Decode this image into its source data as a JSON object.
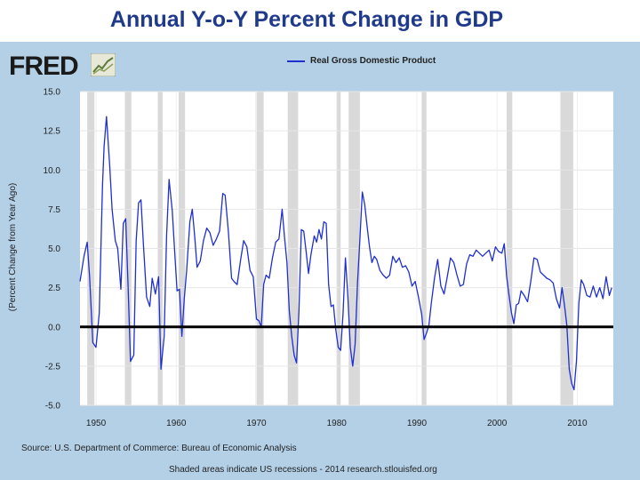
{
  "slide": {
    "title": "Annual Y-o-Y Percent Change in GDP"
  },
  "fred": {
    "logo_text": "FRED",
    "source": "Source: U.S. Department of Commerce: Bureau of Economic Analysis",
    "footnote": "Shaded areas indicate US recessions - 2014 research.stlouisfed.org"
  },
  "chart_data": {
    "type": "line",
    "title": "",
    "xlabel": "",
    "ylabel": "(Percent Change from Year Ago)",
    "xlim": [
      1948,
      2014.5
    ],
    "ylim": [
      -5,
      15
    ],
    "x_ticks": [
      "1950",
      "1960",
      "1970",
      "1980",
      "1990",
      "2000",
      "2010"
    ],
    "y_ticks": [
      "15.0",
      "12.5",
      "10.0",
      "7.5",
      "5.0",
      "2.5",
      "0.0",
      "-2.5",
      "-5.0"
    ],
    "grid": true,
    "legend_position": "top-center",
    "zero_line": true,
    "colors": {
      "series": "#1f2fd0",
      "recession": "#d9d9d9",
      "panel": "#b4d0e6",
      "title": "#1f3a8a"
    },
    "recessions": [
      [
        1948.9,
        1949.8
      ],
      [
        1953.6,
        1954.4
      ],
      [
        1957.7,
        1958.3
      ],
      [
        1960.3,
        1961.1
      ],
      [
        1969.9,
        1970.9
      ],
      [
        1973.9,
        1975.2
      ],
      [
        1980.0,
        1980.5
      ],
      [
        1981.5,
        1982.9
      ],
      [
        1990.6,
        1991.2
      ],
      [
        2001.2,
        2001.9
      ],
      [
        2007.9,
        2009.5
      ]
    ],
    "series": [
      {
        "name": "Real Gross Domestic Product",
        "x": [
          1948.0,
          1948.5,
          1948.9,
          1949.2,
          1949.6,
          1950.0,
          1950.4,
          1950.8,
          1951.0,
          1951.3,
          1951.7,
          1952.0,
          1952.4,
          1952.7,
          1953.1,
          1953.4,
          1953.7,
          1954.0,
          1954.3,
          1954.7,
          1955.0,
          1955.3,
          1955.6,
          1955.9,
          1956.3,
          1956.7,
          1957.0,
          1957.4,
          1957.8,
          1958.1,
          1958.5,
          1958.8,
          1959.1,
          1959.5,
          1959.8,
          1960.1,
          1960.4,
          1960.7,
          1961.0,
          1961.3,
          1961.7,
          1962.0,
          1962.3,
          1962.6,
          1963.0,
          1963.4,
          1963.8,
          1964.2,
          1964.6,
          1965.0,
          1965.4,
          1965.8,
          1966.1,
          1966.5,
          1966.9,
          1967.2,
          1967.6,
          1968.0,
          1968.4,
          1968.8,
          1969.2,
          1969.6,
          1970.0,
          1970.3,
          1970.6,
          1970.9,
          1971.2,
          1971.6,
          1972.0,
          1972.4,
          1972.8,
          1973.2,
          1973.5,
          1973.8,
          1974.1,
          1974.4,
          1974.7,
          1975.0,
          1975.3,
          1975.6,
          1975.9,
          1976.2,
          1976.5,
          1976.8,
          1977.2,
          1977.5,
          1977.8,
          1978.1,
          1978.4,
          1978.7,
          1979.0,
          1979.3,
          1979.6,
          1979.9,
          1980.2,
          1980.5,
          1980.8,
          1981.1,
          1981.4,
          1981.7,
          1982.0,
          1982.3,
          1982.6,
          1982.9,
          1983.2,
          1983.5,
          1983.8,
          1984.1,
          1984.4,
          1984.7,
          1985.0,
          1985.4,
          1985.8,
          1986.2,
          1986.6,
          1987.0,
          1987.4,
          1987.8,
          1988.2,
          1988.6,
          1989.0,
          1989.4,
          1989.8,
          1990.2,
          1990.6,
          1990.9,
          1991.2,
          1991.5,
          1991.8,
          1992.2,
          1992.6,
          1993.0,
          1993.4,
          1993.8,
          1994.2,
          1994.6,
          1995.0,
          1995.4,
          1995.8,
          1996.2,
          1996.6,
          1997.0,
          1997.4,
          1997.8,
          1998.2,
          1998.6,
          1999.0,
          1999.4,
          1999.8,
          2000.2,
          2000.6,
          2000.9,
          2001.2,
          2001.5,
          2001.8,
          2002.1,
          2002.4,
          2002.7,
          2003.0,
          2003.4,
          2003.8,
          2004.2,
          2004.6,
          2005.0,
          2005.4,
          2005.8,
          2006.2,
          2006.6,
          2007.0,
          2007.4,
          2007.8,
          2008.1,
          2008.4,
          2008.7,
          2009.0,
          2009.3,
          2009.6,
          2009.9,
          2010.2,
          2010.5,
          2010.8,
          2011.2,
          2011.6,
          2012.0,
          2012.4,
          2012.8,
          2013.2,
          2013.6,
          2014.0,
          2014.3
        ],
        "values": [
          2.9,
          4.5,
          5.4,
          3.2,
          -1.0,
          -1.3,
          0.9,
          9.0,
          11.5,
          13.4,
          10.3,
          7.5,
          5.5,
          5.0,
          2.4,
          6.6,
          6.9,
          2.6,
          -2.2,
          -1.8,
          5.5,
          7.9,
          8.1,
          5.3,
          1.9,
          1.3,
          3.1,
          2.1,
          3.2,
          -2.7,
          -0.6,
          5.8,
          9.4,
          7.4,
          4.8,
          2.3,
          2.4,
          -0.6,
          1.8,
          3.6,
          6.7,
          7.5,
          5.8,
          3.8,
          4.2,
          5.5,
          6.3,
          6.0,
          5.2,
          5.6,
          6.1,
          8.5,
          8.4,
          6.1,
          3.1,
          2.9,
          2.7,
          4.2,
          5.5,
          5.1,
          3.6,
          3.2,
          0.5,
          0.4,
          0.0,
          2.7,
          3.3,
          3.1,
          4.4,
          5.4,
          5.6,
          7.5,
          5.7,
          4.1,
          1.0,
          -0.6,
          -1.8,
          -2.3,
          1.0,
          6.2,
          6.1,
          4.8,
          3.4,
          4.6,
          5.8,
          5.4,
          6.2,
          5.6,
          6.7,
          6.6,
          2.7,
          1.3,
          1.4,
          -0.2,
          -1.3,
          -1.5,
          0.8,
          4.4,
          1.9,
          -1.3,
          -2.5,
          -1.1,
          2.8,
          5.6,
          8.6,
          7.8,
          6.4,
          5.1,
          4.1,
          4.5,
          4.3,
          3.6,
          3.3,
          3.1,
          3.3,
          4.5,
          4.1,
          4.4,
          3.8,
          3.9,
          3.5,
          2.6,
          2.9,
          1.9,
          0.8,
          -0.8,
          -0.4,
          0.1,
          1.5,
          3.1,
          4.3,
          2.6,
          2.1,
          3.2,
          4.4,
          4.1,
          3.3,
          2.6,
          2.7,
          4.0,
          4.6,
          4.5,
          4.9,
          4.7,
          4.5,
          4.7,
          4.9,
          4.2,
          5.1,
          4.8,
          4.7,
          5.3,
          3.2,
          2.0,
          0.9,
          0.2,
          1.4,
          1.5,
          2.3,
          2.0,
          1.6,
          2.9,
          4.4,
          4.3,
          3.5,
          3.3,
          3.1,
          3.0,
          2.8,
          1.8,
          1.2,
          2.5,
          1.4,
          0.1,
          -2.7,
          -3.6,
          -4.0,
          -2.2,
          1.5,
          3.0,
          2.7,
          2.0,
          1.9,
          2.6,
          1.9,
          2.5,
          1.8,
          3.2,
          2.0,
          2.5
        ]
      }
    ]
  }
}
